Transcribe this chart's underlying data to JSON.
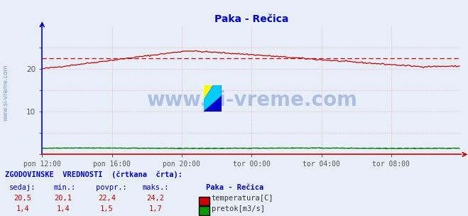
{
  "title": "Paka - Rečica",
  "title_color": "#0000cc",
  "background_color": "#e8eef8",
  "plot_bg_color": "#e8eef8",
  "x_labels": [
    "pon 12:00",
    "pon 16:00",
    "pon 20:00",
    "tor 00:00",
    "tor 04:00",
    "tor 08:00"
  ],
  "x_ticks": [
    0,
    48,
    96,
    144,
    192,
    240
  ],
  "x_max": 288,
  "y_min": 0,
  "y_max": 30,
  "y_tick_vals": [
    0,
    5,
    10,
    15,
    20,
    25,
    30
  ],
  "y_tick_labels": [
    "",
    "",
    "10",
    "",
    "20",
    "",
    ""
  ],
  "temp_color": "#cc0000",
  "flow_color": "#007700",
  "grid_color": "#ddaaaa",
  "left_axis_color": "#0000cc",
  "bottom_axis_color": "#cc0000",
  "watermark_text": "www.si-vreme.com",
  "watermark_color": "#003399",
  "side_label": "www.si-vreme.com",
  "side_label_color": "#6688cc",
  "footer_header_color": "#0000cc",
  "footer_label_color": "#0000cc",
  "footer_value_color": "#cc0000",
  "footer_legend_title_color": "#0000cc",
  "legend_title": "Paka - Rečica",
  "temp_avg": 22.4,
  "flow_avg": 1.5,
  "temp_sedaj": "20,5",
  "temp_min": "20,1",
  "temp_povpr": "22,4",
  "temp_maks": "24,2",
  "flow_sedaj": "1,4",
  "flow_min": "1,4",
  "flow_povpr": "1,5",
  "flow_maks": "1,7"
}
